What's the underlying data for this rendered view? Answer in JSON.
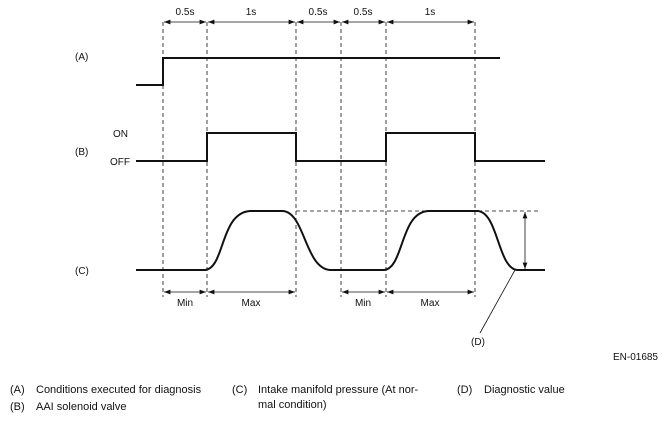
{
  "intervals_top": [
    "0.5s",
    "1s",
    "0.5s",
    "0.5s",
    "1s"
  ],
  "signals": {
    "a": {
      "label": "(A)"
    },
    "b": {
      "label": "(B)",
      "on": "ON",
      "off": "OFF"
    },
    "c": {
      "label": "(C)"
    }
  },
  "intervals_bottom": [
    "Min",
    "Max",
    "Min",
    "Max"
  ],
  "callout": "(D)",
  "figure_id": "EN-01685",
  "legend": [
    {
      "key": "(A)",
      "text": "Conditions executed for diagnosis"
    },
    {
      "key": "(B)",
      "text": "AAI solenoid valve"
    },
    {
      "key": "(C)",
      "lines": [
        "Intake manifold pressure (At nor-",
        "mal condition)"
      ]
    },
    {
      "key": "(D)",
      "text": "Diagnostic value"
    }
  ]
}
